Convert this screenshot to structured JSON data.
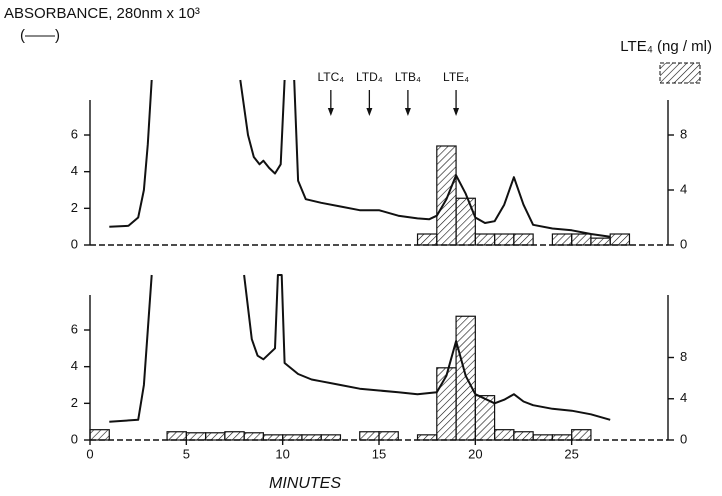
{
  "chart_data": {
    "type": "chromatogram",
    "y_label": "ABSORBANCE, 280nm x 10³",
    "y_legend": "(——)",
    "y2_label": "LTE₄  (ng / ml)",
    "x_label": "MINUTES",
    "xlim": [
      0,
      30
    ],
    "xticks": [
      0,
      5,
      10,
      15,
      20,
      25
    ],
    "line_color": "#111111",
    "bar_color": "#111111",
    "annotations": [
      {
        "label": "LTC₄",
        "x": 12.5
      },
      {
        "label": "LTD₄",
        "x": 14.5
      },
      {
        "label": "LTB₄",
        "x": 16.5
      },
      {
        "label": "LTE₄",
        "x": 19
      }
    ],
    "panels": [
      {
        "ylim": [
          0,
          9
        ],
        "yticks": [
          0,
          2,
          4,
          6
        ],
        "y2lim": [
          0,
          12
        ],
        "y2ticks": [
          0,
          4,
          8
        ],
        "line": {
          "x": [
            1,
            2,
            2.5,
            2.8,
            3,
            3.2,
            5,
            7.8,
            8.2,
            8.5,
            8.8,
            9,
            9.3,
            9.6,
            9.9,
            10.1,
            10.3,
            10.6,
            10.8,
            11.2,
            12,
            13,
            14,
            15,
            16,
            17,
            17.6,
            18,
            18.5,
            19,
            19.5,
            20,
            20.5,
            21,
            21.5,
            22,
            22.5,
            23,
            24,
            25,
            26,
            27
          ],
          "values": [
            1,
            1.05,
            1.5,
            3,
            5.5,
            9,
            null,
            9,
            6,
            4.8,
            4.4,
            4.6,
            4.2,
            3.9,
            4.4,
            9,
            null,
            9,
            3.5,
            2.5,
            2.3,
            2.1,
            1.9,
            1.9,
            1.6,
            1.45,
            1.4,
            1.6,
            2.5,
            3.8,
            2.8,
            1.5,
            1.2,
            1.3,
            2.2,
            3.7,
            2.2,
            1.1,
            0.9,
            0.8,
            0.6,
            0.45
          ]
        },
        "bars": {
          "bins": [
            0,
            1,
            2,
            3,
            4,
            5,
            6,
            7,
            8,
            9,
            10,
            11,
            12,
            13,
            14,
            15,
            16,
            17,
            18,
            19,
            20,
            21,
            22,
            23,
            24,
            25,
            26,
            27,
            28,
            29,
            30
          ],
          "values": [
            0,
            0,
            0,
            0,
            0,
            0,
            0,
            0,
            0,
            0,
            0,
            0,
            0,
            0,
            0,
            0,
            0,
            0.8,
            7.2,
            3.4,
            0.8,
            0.8,
            0.8,
            0,
            0.8,
            0.8,
            0.5,
            0.8,
            0,
            0
          ]
        }
      },
      {
        "ylim": [
          0,
          9
        ],
        "yticks": [
          0,
          2,
          4,
          6
        ],
        "y2lim": [
          0,
          16
        ],
        "y2ticks": [
          0,
          4,
          8
        ],
        "line": {
          "x": [
            1,
            2.5,
            2.8,
            3,
            3.2,
            5.5,
            8,
            8.4,
            8.7,
            9,
            9.3,
            9.6,
            9.75,
            9.95,
            10.1,
            10.8,
            11.5,
            12,
            13,
            14,
            15,
            16,
            17,
            18,
            18.5,
            19,
            19.5,
            20,
            21,
            21.5,
            22,
            22.5,
            23,
            24,
            25,
            26,
            27
          ],
          "values": [
            1,
            1.1,
            3,
            6,
            9,
            null,
            9,
            5.5,
            4.6,
            4.4,
            4.7,
            5.0,
            9,
            9,
            4.2,
            3.6,
            3.3,
            3.2,
            3.0,
            2.8,
            2.7,
            2.6,
            2.5,
            2.6,
            3.5,
            5.4,
            3.5,
            2.5,
            2.0,
            2.2,
            2.5,
            2.1,
            1.9,
            1.7,
            1.6,
            1.4,
            1.1
          ]
        },
        "bars": {
          "bins": [
            0,
            1,
            2,
            3,
            4,
            5,
            6,
            7,
            8,
            9,
            10,
            11,
            12,
            13,
            14,
            15,
            16,
            17,
            18,
            19,
            20,
            21,
            22,
            23,
            24,
            25,
            26,
            27,
            28,
            29,
            30
          ],
          "values": [
            1.0,
            0,
            0,
            0,
            0.8,
            0.7,
            0.7,
            0.8,
            0.7,
            0.5,
            0.5,
            0.5,
            0.5,
            0,
            0.8,
            0.8,
            0,
            0.5,
            7.0,
            12.0,
            4.3,
            1.0,
            0.8,
            0.5,
            0.5,
            1.0,
            0,
            0,
            0,
            0
          ]
        }
      }
    ]
  }
}
